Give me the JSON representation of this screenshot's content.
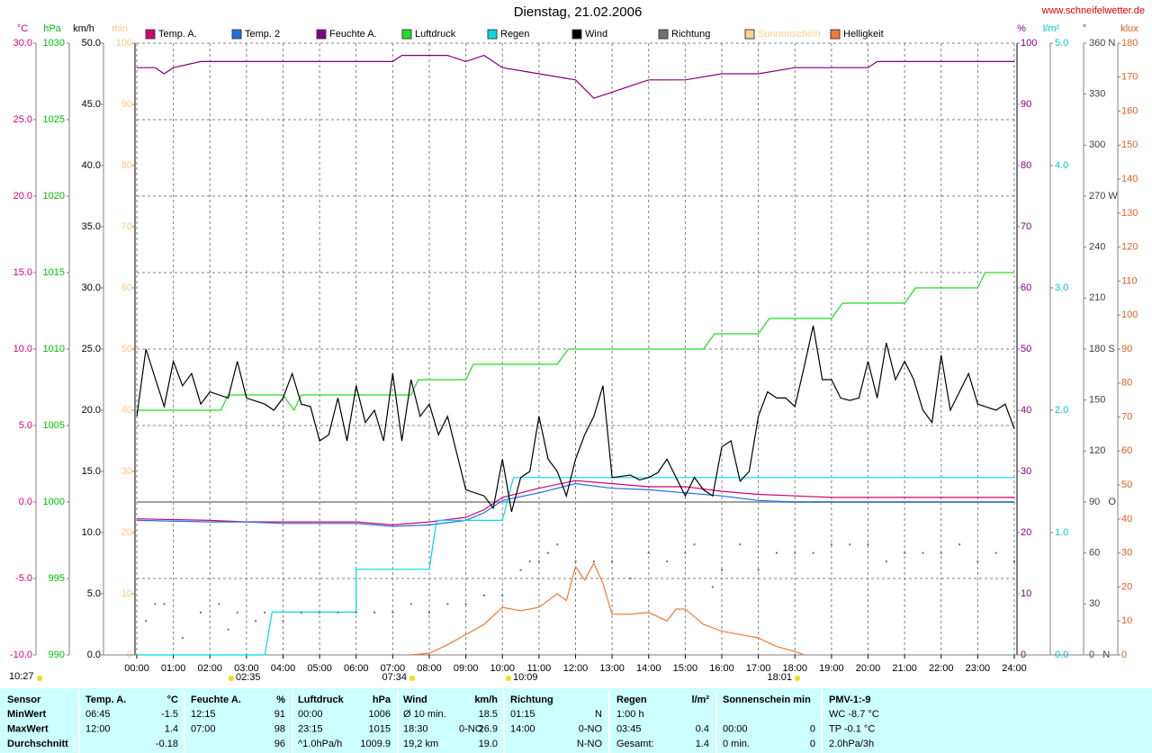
{
  "chart_data": {
    "type": "line",
    "title": "Dienstag, 21.02.2006",
    "source": "www.schneifelwetter.de",
    "xlim": [
      0,
      24
    ],
    "xticks": [
      {
        "value": 0,
        "label": "00:00"
      },
      {
        "value": 1,
        "label": "01:00"
      },
      {
        "value": 2,
        "label": "02:00"
      },
      {
        "value": 3,
        "label": "03:00"
      },
      {
        "value": 4,
        "label": "04:00"
      },
      {
        "value": 5,
        "label": "05:00"
      },
      {
        "value": 6,
        "label": "06:00"
      },
      {
        "value": 7,
        "label": "07:00"
      },
      {
        "value": 8,
        "label": "08:00"
      },
      {
        "value": 9,
        "label": "09:00"
      },
      {
        "value": 10,
        "label": "10:00"
      },
      {
        "value": 11,
        "label": "11:00"
      },
      {
        "value": 12,
        "label": "12:00"
      },
      {
        "value": 13,
        "label": "13:00"
      },
      {
        "value": 14,
        "label": "14:00"
      },
      {
        "value": 15,
        "label": "15:00"
      },
      {
        "value": 16,
        "label": "16:00"
      },
      {
        "value": 17,
        "label": "17:00"
      },
      {
        "value": 18,
        "label": "18:00"
      },
      {
        "value": 19,
        "label": "19:00"
      },
      {
        "value": 20,
        "label": "20:00"
      },
      {
        "value": 21,
        "label": "21:00"
      },
      {
        "value": 22,
        "label": "22:00"
      },
      {
        "value": 23,
        "label": "23:00"
      },
      {
        "value": 24,
        "label": "24:00"
      }
    ],
    "grid": true,
    "axes": [
      {
        "unit": "°C",
        "color": "#e0007a",
        "lim": [
          -10,
          30
        ],
        "ticks": [
          {
            "value": -10,
            "label": "-10.0"
          },
          {
            "value": -5,
            "label": "-5.0"
          },
          {
            "value": 0,
            "label": "0.0"
          },
          {
            "value": 5,
            "label": "5.0"
          },
          {
            "value": 10,
            "label": "10.0"
          },
          {
            "value": 15,
            "label": "15.0"
          },
          {
            "value": 20,
            "label": "20.0"
          },
          {
            "value": 25,
            "label": "25.0"
          },
          {
            "value": 30,
            "label": "30.0"
          }
        ]
      },
      {
        "unit": "hPa",
        "color": "#00c000",
        "lim": [
          990,
          1030
        ],
        "ticks": [
          990,
          995,
          1000,
          1005,
          1010,
          1015,
          1020,
          1025,
          1030
        ]
      },
      {
        "unit": "km/h",
        "color": "#000000",
        "lim": [
          0,
          50
        ],
        "ticks": [
          {
            "value": 0,
            "label": "0.0"
          },
          {
            "value": 5,
            "label": "5.0"
          },
          {
            "value": 10,
            "label": "10.0"
          },
          {
            "value": 15,
            "label": "15.0"
          },
          {
            "value": 20,
            "label": "20.0"
          },
          {
            "value": 25,
            "label": "25.0"
          },
          {
            "value": 30,
            "label": "30.0"
          },
          {
            "value": 35,
            "label": "35.0"
          },
          {
            "value": 40,
            "label": "40.0"
          },
          {
            "value": 45,
            "label": "45.0"
          },
          {
            "value": 50,
            "label": "50.0"
          }
        ]
      },
      {
        "unit": "min",
        "color": "#ffc880",
        "lim": [
          0,
          100
        ],
        "ticks": [
          0,
          10,
          20,
          30,
          40,
          50,
          60,
          70,
          80,
          90,
          100
        ]
      },
      {
        "unit": "%",
        "color": "#800080",
        "lim": [
          0,
          100
        ],
        "ticks": [
          0,
          10,
          20,
          30,
          40,
          50,
          60,
          70,
          80,
          90,
          100
        ]
      },
      {
        "unit": "l/m²",
        "color": "#00c8d8",
        "lim": [
          0,
          5
        ],
        "ticks": [
          {
            "value": 0,
            "label": "0.0"
          },
          {
            "value": 1,
            "label": "1.0"
          },
          {
            "value": 2,
            "label": "2.0"
          },
          {
            "value": 3,
            "label": "3.0"
          },
          {
            "value": 4,
            "label": "4.0"
          },
          {
            "value": 5,
            "label": "5.0"
          }
        ]
      },
      {
        "unit": "°",
        "color": "#404040",
        "lim": [
          0,
          360
        ],
        "ticks": [
          {
            "value": 0,
            "label": "0   N"
          },
          30,
          60,
          {
            "value": 90,
            "label": "90   O"
          },
          120,
          150,
          {
            "value": 180,
            "label": "180 S"
          },
          210,
          240,
          {
            "value": 270,
            "label": "270 W"
          },
          300,
          330,
          {
            "value": 360,
            "label": "360 N"
          }
        ]
      },
      {
        "unit": "klux",
        "color": "#e06020",
        "lim": [
          0,
          180
        ],
        "ticks": [
          0,
          10,
          20,
          30,
          40,
          50,
          60,
          70,
          80,
          90,
          100,
          110,
          120,
          130,
          140,
          150,
          160,
          170,
          180
        ]
      }
    ],
    "series": [
      {
        "name": "Temp. A.",
        "color": "#d0006f",
        "axis": 0,
        "x": [
          0,
          2,
          3,
          4,
          6,
          7,
          8,
          9,
          9.5,
          10,
          11,
          12,
          13,
          14,
          15,
          16,
          17,
          18,
          19,
          24
        ],
        "values": [
          -1.1,
          -1.2,
          -1.3,
          -1.3,
          -1.3,
          -1.5,
          -1.3,
          -1.0,
          -0.5,
          0.3,
          0.9,
          1.4,
          1.2,
          1.0,
          1.0,
          0.7,
          0.5,
          0.4,
          0.3,
          0.3
        ]
      },
      {
        "name": "Temp. 2",
        "color": "#1e6fe0",
        "axis": 0,
        "x": [
          0,
          2,
          3,
          4,
          6,
          7,
          8,
          9,
          9.5,
          10,
          11,
          12,
          13,
          14,
          15,
          16,
          17,
          18,
          19,
          24
        ],
        "values": [
          -1.2,
          -1.3,
          -1.3,
          -1.4,
          -1.4,
          -1.6,
          -1.5,
          -1.2,
          -0.7,
          0.1,
          0.6,
          1.2,
          0.9,
          0.8,
          0.6,
          0.4,
          0.1,
          0.0,
          0.0,
          0.0
        ]
      },
      {
        "name": "Feuchte A.",
        "color": "#800080",
        "axis": 4,
        "x": [
          0,
          0.5,
          0.75,
          1,
          1.75,
          7,
          7.25,
          8.5,
          9,
          9.5,
          10,
          11,
          12,
          12.5,
          13,
          13.5,
          14,
          15,
          16,
          17,
          18,
          19,
          20,
          20.25,
          24
        ],
        "values": [
          96,
          96,
          95,
          96,
          97,
          97,
          98,
          98,
          97,
          98,
          96,
          95,
          94,
          91,
          92,
          93,
          94,
          94,
          95,
          95,
          96,
          96,
          96,
          97,
          97
        ]
      },
      {
        "name": "Luftdruck",
        "color": "#22dd22",
        "axis": 1,
        "x": [
          0,
          2.3,
          2.5,
          4,
          4.3,
          4.5,
          7.5,
          7.7,
          9,
          9.2,
          11.5,
          11.8,
          15.5,
          15.8,
          17,
          17.3,
          19,
          19.3,
          21,
          21.3,
          23,
          23.2,
          24
        ],
        "values": [
          1006,
          1006,
          1007,
          1007,
          1006,
          1007,
          1007,
          1008,
          1008,
          1009,
          1009,
          1010,
          1010,
          1011,
          1011,
          1012,
          1012,
          1013,
          1013,
          1014,
          1014,
          1015,
          1015
        ]
      },
      {
        "name": "Regen",
        "color": "#00d8e8",
        "axis": 5,
        "x": [
          0,
          3.5,
          3.7,
          6,
          6,
          8,
          8.2,
          10,
          10.3,
          24
        ],
        "values": [
          0,
          0,
          0.35,
          0.35,
          0.7,
          0.7,
          1.1,
          1.1,
          1.45,
          1.45
        ]
      },
      {
        "name": "Wind",
        "color": "#000000",
        "axis": 2,
        "x": [
          0,
          0.25,
          0.75,
          1,
          1.25,
          1.5,
          1.75,
          2,
          2.5,
          2.75,
          3,
          3.5,
          3.75,
          4,
          4.25,
          4.5,
          4.75,
          5,
          5.25,
          5.5,
          5.75,
          6,
          6.25,
          6.5,
          6.75,
          7,
          7.25,
          7.5,
          7.75,
          8,
          8.25,
          8.5,
          8.75,
          9,
          9.5,
          9.75,
          10,
          10.25,
          10.5,
          10.75,
          11,
          11.25,
          11.5,
          11.75,
          12,
          12.25,
          12.5,
          12.75,
          13,
          13.5,
          13.75,
          14,
          14.25,
          14.5,
          14.75,
          15,
          15.25,
          15.5,
          15.75,
          16,
          16.25,
          16.5,
          16.75,
          17,
          17.25,
          17.5,
          17.75,
          18,
          18.25,
          18.5,
          18.75,
          19,
          19.25,
          19.5,
          19.75,
          20,
          20.25,
          20.5,
          20.75,
          21,
          21.25,
          21.5,
          21.75,
          22,
          22.25,
          22.5,
          22.75,
          23,
          23.5,
          23.75,
          24
        ],
        "values": [
          19.5,
          25,
          20.3,
          24,
          22,
          23,
          20.5,
          21.5,
          21,
          24,
          21,
          20.5,
          20,
          21,
          23,
          20.5,
          20.3,
          17.5,
          18,
          21,
          17.5,
          22,
          19,
          20,
          17.5,
          23,
          17.5,
          22.5,
          19.5,
          20.5,
          18,
          19.5,
          16.5,
          13.5,
          13,
          12,
          16,
          11.7,
          14.5,
          15,
          19.5,
          16,
          15,
          13,
          16,
          18,
          19.5,
          22,
          14.5,
          14.7,
          14.3,
          14.5,
          14.9,
          16,
          14.5,
          13,
          14.5,
          13.5,
          13,
          17,
          17.5,
          14.2,
          15,
          19.5,
          21.5,
          21,
          21,
          20.3,
          23.5,
          26.9,
          22.5,
          22.5,
          21,
          20.8,
          21,
          24,
          21,
          25.5,
          22.5,
          24,
          22.5,
          20,
          19,
          24.5,
          20,
          21.5,
          23,
          20.5,
          20,
          20.5,
          18.5
        ]
      },
      {
        "name": "Richtung",
        "color": "#707070",
        "axis": 6,
        "style": "dots",
        "x": [
          0.25,
          0.5,
          0.75,
          1.25,
          1.75,
          2.25,
          2.5,
          2.75,
          3.25,
          3.5,
          4,
          4.5,
          5,
          5.5,
          6,
          6.5,
          7,
          7.5,
          8,
          8.5,
          9,
          9.5,
          10,
          10.5,
          10.75,
          11,
          11.25,
          11.5,
          12,
          12.5,
          13,
          13.5,
          14,
          14.5,
          15,
          15.25,
          15.75,
          16,
          16.5,
          17,
          17.5,
          18,
          18.5,
          19,
          19.5,
          20,
          20.5,
          21,
          21.5,
          22,
          22.5,
          23,
          23.5,
          24
        ],
        "values": [
          20,
          30,
          30,
          10,
          25,
          30,
          15,
          25,
          20,
          25,
          20,
          25,
          25,
          25,
          25,
          25,
          25,
          30,
          25,
          30,
          30,
          35,
          35,
          50,
          55,
          55,
          60,
          65,
          55,
          55,
          55,
          45,
          60,
          55,
          60,
          65,
          40,
          50,
          65,
          50,
          60,
          60,
          60,
          65,
          65,
          65,
          55,
          60,
          60,
          60,
          65,
          55,
          60,
          55
        ]
      },
      {
        "name": "Sonnenschein",
        "color": "#ffd090",
        "axis": 3
      },
      {
        "name": "Helligkeit",
        "color": "#f07838",
        "axis": 7,
        "x": [
          7.5,
          8,
          8.5,
          9,
          9.5,
          10,
          10.5,
          11,
          11.5,
          11.75,
          12,
          12.25,
          12.5,
          12.75,
          13,
          13.5,
          14,
          14.5,
          14.75,
          15,
          15.5,
          16,
          16.5,
          17,
          17.5,
          18,
          18.25
        ],
        "values": [
          0,
          0.5,
          3,
          6,
          9,
          14,
          13,
          14,
          18,
          16,
          26,
          22,
          27,
          21,
          12,
          12,
          12.5,
          10,
          13.5,
          13.5,
          9,
          7,
          6,
          5,
          2.5,
          1,
          0
        ]
      }
    ],
    "annotations": [
      "10:27",
      "02:35",
      "07:34",
      "10:09",
      "18:01"
    ]
  },
  "table": {
    "rows": [
      [
        "Sensor",
        "Temp. A.",
        "°C",
        "Feuchte A.",
        "%",
        "Luftdruck",
        "hPa",
        "Wind",
        null,
        "km/h",
        "Richtung",
        null,
        "Regen",
        "l/m²",
        "Sonnenschein min",
        null,
        "PMV-1:-9"
      ],
      [
        "MinWert",
        "06:45",
        "-1.5",
        "12:15",
        "91",
        "00:00",
        "1006",
        "Ø 10 min.",
        null,
        "18.5",
        "01:15",
        "N",
        "1:00 h",
        null,
        null,
        null,
        "WC -8.7 °C"
      ],
      [
        "MaxWert",
        "12:00",
        "1.4",
        "07:00",
        "98",
        "23:15",
        "1015",
        "18:30",
        "0-NO",
        "26.9",
        "14:00",
        "0-NO",
        "03:45",
        "0.4",
        "00:00",
        "0",
        "TP -0.1 °C"
      ],
      [
        "Durchschnitt",
        null,
        "-0.18",
        null,
        "96",
        "^1.0hPa/h",
        "1009.9",
        "19,2 km",
        null,
        "19.0",
        null,
        "N-NO",
        "Gesamt:",
        "1.4",
        "0 min.",
        "0",
        "2.0hPa/3h"
      ]
    ]
  }
}
